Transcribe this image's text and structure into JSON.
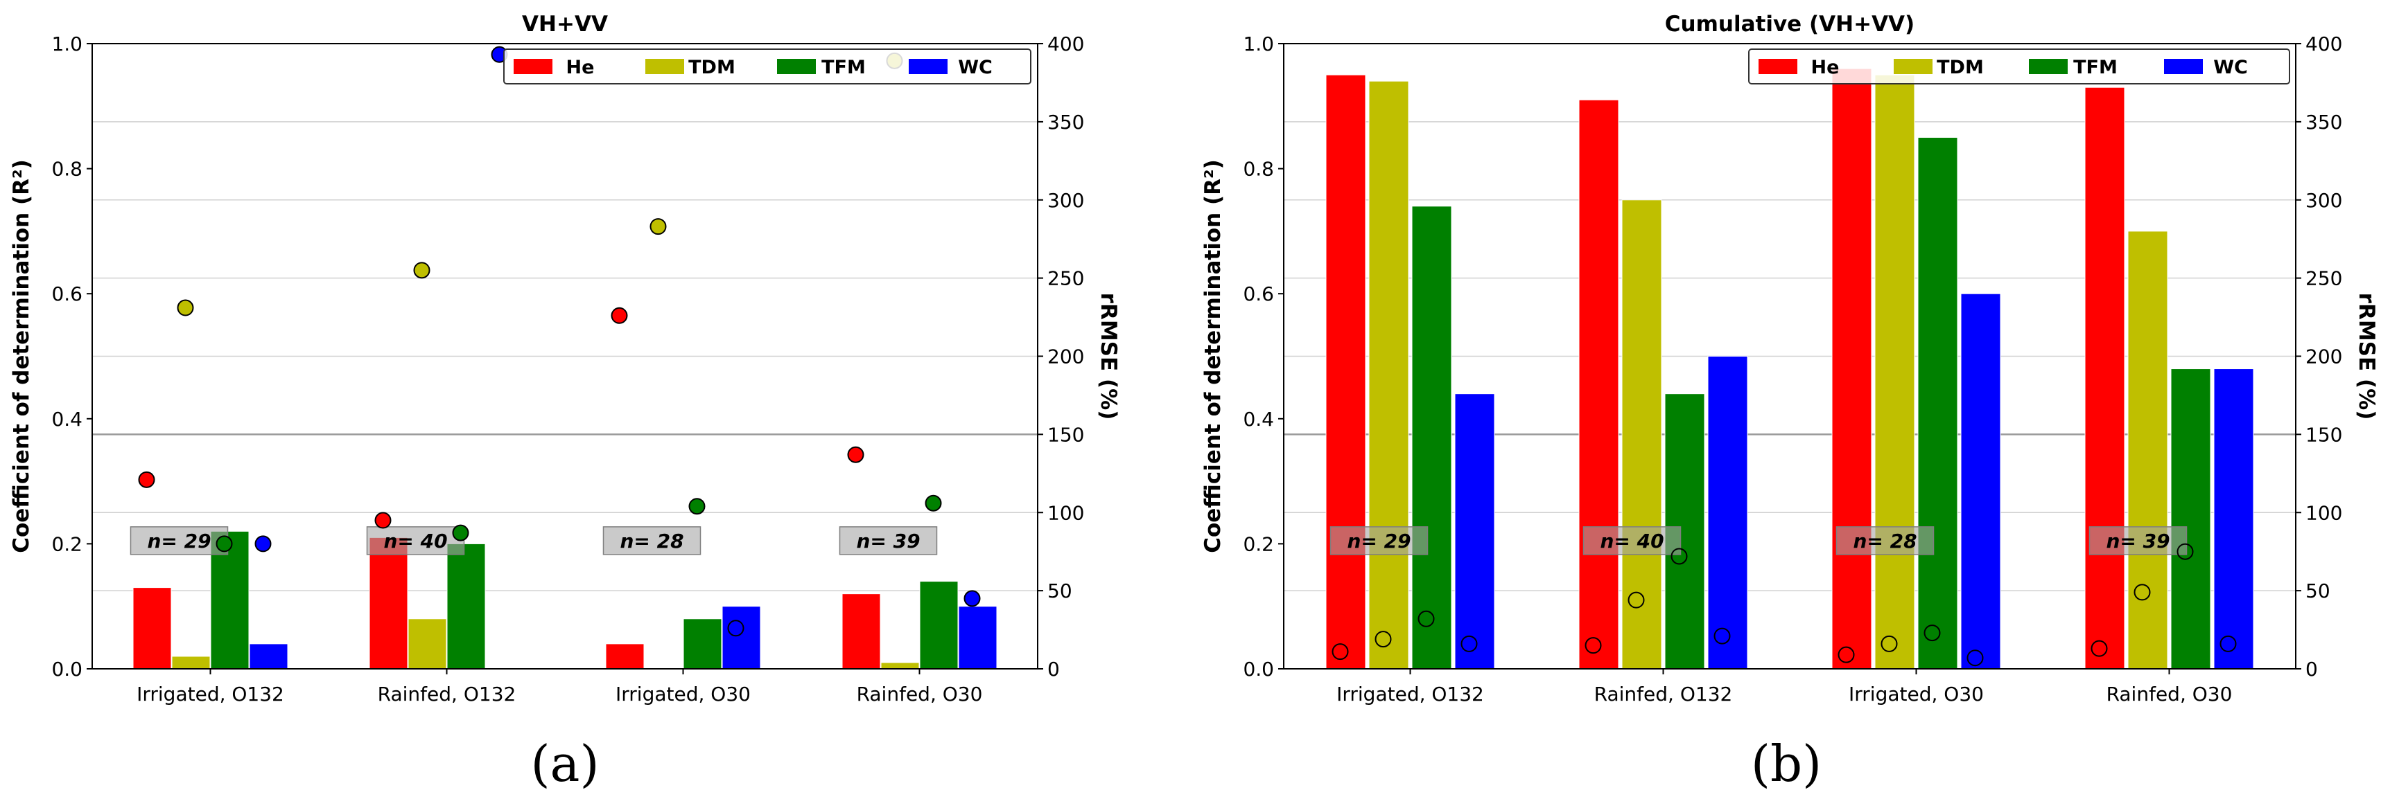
{
  "chart_data": [
    {
      "id": "a",
      "type": "bar",
      "panel_label": "(a)",
      "title": "VH+VV",
      "xlabel": "",
      "ylabel": "Coefficient of determination (R²)",
      "y2label": "rRMSE (%)",
      "ylim": [
        0,
        1.0
      ],
      "y2lim": [
        0,
        400
      ],
      "yticks": [
        "0.0",
        "0.2",
        "0.4",
        "0.6",
        "0.8",
        "1.0"
      ],
      "y2ticks": [
        "0",
        "50",
        "100",
        "150",
        "200",
        "250",
        "300",
        "350",
        "400"
      ],
      "grid": "horizontal, right axis",
      "legend_position": "top-right",
      "categories": [
        "Irrigated, O132",
        "Rainfed, O132",
        "Irrigated, O30",
        "Rainfed, O30"
      ],
      "sample_sizes": [
        "n= 29",
        "n= 40",
        "n= 28",
        "n= 39"
      ],
      "series": [
        {
          "name": "He",
          "color": "#ff0000",
          "r2": [
            0.13,
            0.21,
            0.04,
            0.12
          ],
          "rrmse": [
            121,
            95,
            226,
            137
          ]
        },
        {
          "name": "TDM",
          "color": "#bfbf00",
          "r2": [
            0.02,
            0.08,
            0.0,
            0.01
          ],
          "rrmse": [
            231,
            255,
            283,
            389
          ]
        },
        {
          "name": "TFM",
          "color": "#008000",
          "r2": [
            0.22,
            0.2,
            0.08,
            0.14
          ],
          "rrmse": [
            80,
            87,
            104,
            106
          ]
        },
        {
          "name": "WC",
          "color": "#0000ff",
          "r2": [
            0.04,
            null,
            0.1,
            0.1
          ],
          "rrmse": [
            80,
            393,
            26,
            45
          ]
        }
      ],
      "marker_style": "filled"
    },
    {
      "id": "b",
      "type": "bar",
      "panel_label": "(b)",
      "title": "Cumulative (VH+VV)",
      "xlabel": "",
      "ylabel": "Coefficient of determination (R²)",
      "y2label": "rRMSE (%)",
      "ylim": [
        0,
        1.0
      ],
      "y2lim": [
        0,
        400
      ],
      "yticks": [
        "0.0",
        "0.2",
        "0.4",
        "0.6",
        "0.8",
        "1.0"
      ],
      "y2ticks": [
        "0",
        "50",
        "100",
        "150",
        "200",
        "250",
        "300",
        "350",
        "400"
      ],
      "grid": "horizontal, right axis",
      "legend_position": "top-right",
      "categories": [
        "Irrigated, O132",
        "Rainfed, O132",
        "Irrigated, O30",
        "Rainfed, O30"
      ],
      "sample_sizes": [
        "n= 29",
        "n= 40",
        "n= 28",
        "n= 39"
      ],
      "series": [
        {
          "name": "He",
          "color": "#ff0000",
          "r2": [
            0.95,
            0.91,
            0.96,
            0.93
          ],
          "rrmse": [
            11,
            15,
            9,
            13
          ]
        },
        {
          "name": "TDM",
          "color": "#bfbf00",
          "r2": [
            0.94,
            0.75,
            0.95,
            0.7
          ],
          "rrmse": [
            19,
            44,
            16,
            49
          ]
        },
        {
          "name": "TFM",
          "color": "#008000",
          "r2": [
            0.74,
            0.44,
            0.85,
            0.48
          ],
          "rrmse": [
            32,
            72,
            23,
            75
          ]
        },
        {
          "name": "WC",
          "color": "#0000ff",
          "r2": [
            0.44,
            0.5,
            0.6,
            0.48
          ],
          "rrmse": [
            16,
            21,
            7,
            16
          ]
        }
      ],
      "marker_style": "hollow"
    }
  ]
}
